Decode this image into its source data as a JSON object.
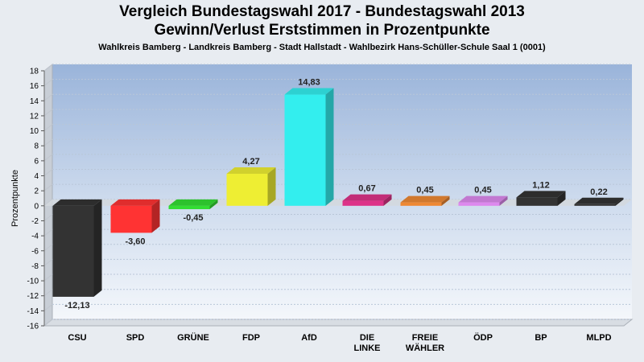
{
  "chart_data": {
    "type": "bar",
    "title_line1": "Vergleich Bundestagswahl 2017 - Bundestagswahl 2013",
    "title_line2": "Gewinn/Verlust Erststimmen in Prozentpunkte",
    "subtitle": "Wahlkreis Bamberg - Landkreis Bamberg - Stadt Hallstadt - Wahlbezirk Hans-Schüller-Schule Saal 1 (0001)",
    "xlabel": "",
    "ylabel": "Prozentpunkte",
    "ylim": [
      -16,
      18
    ],
    "yticks": [
      -16,
      -14,
      -12,
      -10,
      -8,
      -6,
      -4,
      -2,
      0,
      2,
      4,
      6,
      8,
      10,
      12,
      14,
      16,
      18
    ],
    "grid": true,
    "categories": [
      "CSU",
      "SPD",
      "GRÜNE",
      "FDP",
      "AfD",
      "DIE LINKE",
      "FREIE WÄHLER",
      "ÖDP",
      "BP",
      "MLPD"
    ],
    "values": [
      -12.13,
      -3.6,
      -0.45,
      4.27,
      14.83,
      0.67,
      0.45,
      0.45,
      1.12,
      0.22
    ],
    "value_labels": [
      "-12,13",
      "-3,60",
      "-0,45",
      "4,27",
      "14,83",
      "0,67",
      "0,45",
      "0,45",
      "1,12",
      "0,22"
    ],
    "colors": [
      "#333333",
      "#ff3333",
      "#33dd33",
      "#eeee33",
      "#33eeee",
      "#dd3388",
      "#ee8833",
      "#dd88ee",
      "#333333",
      "#333333"
    ]
  }
}
